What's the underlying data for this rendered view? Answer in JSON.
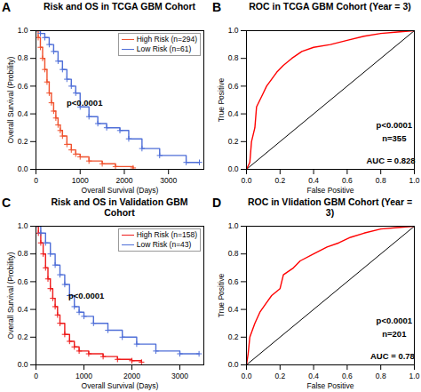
{
  "chart_data": [
    {
      "type": "survival",
      "subtitle": "A",
      "title": "Risk and OS in TCGA GBM Cohort",
      "x_label": "Overall Survival (Days)",
      "y_label": "Overall Survival (Probility)",
      "xlim": [
        0,
        3800
      ],
      "xticks": [
        0,
        1000,
        2000,
        3000
      ],
      "ylim": [
        0,
        1
      ],
      "yticks": [
        {
          "value": 0,
          "label": "0.0"
        },
        {
          "value": 0.2,
          "label": "0.2"
        },
        {
          "value": 0.4,
          "label": "0.4"
        },
        {
          "value": 0.6,
          "label": "0.6"
        },
        {
          "value": 0.8,
          "label": "0.8"
        },
        {
          "value": 1,
          "label": "1.0"
        }
      ],
      "legend": "top-right",
      "marker": "plus",
      "annotations": [
        {
          "text": "p<0.0001",
          "x": 1100,
          "y": 0.48
        }
      ],
      "series": [
        {
          "name": "High Risk (n=294)",
          "color": "#f0522e",
          "x": [
            0,
            50,
            100,
            150,
            200,
            250,
            300,
            350,
            400,
            450,
            500,
            550,
            600,
            700,
            800,
            900,
            1000,
            1200,
            1500,
            1800,
            2200
          ],
          "values": [
            1,
            0.95,
            0.88,
            0.8,
            0.72,
            0.63,
            0.55,
            0.48,
            0.42,
            0.37,
            0.32,
            0.28,
            0.24,
            0.18,
            0.14,
            0.11,
            0.09,
            0.06,
            0.04,
            0.02,
            0.01
          ]
        },
        {
          "name": "Low Risk  (n=61)",
          "color": "#4f6fd8",
          "x": [
            0,
            100,
            200,
            300,
            400,
            500,
            600,
            700,
            800,
            900,
            1000,
            1200,
            1400,
            1600,
            1900,
            2100,
            2400,
            2800,
            3400,
            3700
          ],
          "values": [
            1,
            0.98,
            0.95,
            0.9,
            0.85,
            0.78,
            0.72,
            0.65,
            0.6,
            0.55,
            0.45,
            0.38,
            0.33,
            0.3,
            0.28,
            0.22,
            0.15,
            0.1,
            0.05,
            0.05
          ]
        }
      ]
    },
    {
      "type": "roc",
      "subtitle": "B",
      "title": "ROC in TCGA GBM Cohort (Year = 3)",
      "x_label": "False Positive",
      "y_label": "True Positive",
      "xlim": [
        0,
        1
      ],
      "xticks": [
        {
          "value": 0,
          "label": "0.0"
        },
        {
          "value": 0.2,
          "label": "0.2"
        },
        {
          "value": 0.4,
          "label": "0.4"
        },
        {
          "value": 0.6,
          "label": "0.6"
        },
        {
          "value": 0.8,
          "label": "0.8"
        },
        {
          "value": 1,
          "label": "1.0"
        }
      ],
      "ylim": [
        0,
        1
      ],
      "yticks": [
        {
          "value": 0,
          "label": "0.0"
        },
        {
          "value": 0.2,
          "label": "0.2"
        },
        {
          "value": 0.4,
          "label": "0.4"
        },
        {
          "value": 0.6,
          "label": "0.6"
        },
        {
          "value": 0.8,
          "label": "0.8"
        },
        {
          "value": 1,
          "label": "1.0"
        }
      ],
      "annotations": [
        {
          "text": "p<0.0001",
          "x": 0.88,
          "y": 0.32
        },
        {
          "text": "n=355",
          "x": 0.88,
          "y": 0.22
        },
        {
          "text": "AUC = 0.828",
          "x": 0.86,
          "y": 0.06
        }
      ],
      "series": [
        {
          "color": "red",
          "x": [
            0,
            0.02,
            0.03,
            0.05,
            0.06,
            0.08,
            0.1,
            0.12,
            0.15,
            0.18,
            0.22,
            0.27,
            0.33,
            0.4,
            0.5,
            0.6,
            0.7,
            0.8,
            0.9,
            1
          ],
          "values": [
            0,
            0.05,
            0.2,
            0.3,
            0.45,
            0.5,
            0.55,
            0.6,
            0.65,
            0.7,
            0.75,
            0.8,
            0.85,
            0.88,
            0.9,
            0.93,
            0.96,
            0.98,
            0.99,
            1
          ]
        }
      ]
    },
    {
      "type": "survival",
      "subtitle": "C",
      "title": "Risk and OS in Validation GBM Cohort",
      "x_label": "Overall Survival (Days)",
      "y_label": "Overall Survival (Probility)",
      "xlim": [
        0,
        3500
      ],
      "xticks": [
        0,
        1000,
        2000,
        3000
      ],
      "ylim": [
        0,
        1
      ],
      "yticks": [
        {
          "value": 0,
          "label": "0.0"
        },
        {
          "value": 0.2,
          "label": "0.2"
        },
        {
          "value": 0.4,
          "label": "0.4"
        },
        {
          "value": 0.6,
          "label": "0.6"
        },
        {
          "value": 0.8,
          "label": "0.8"
        },
        {
          "value": 1,
          "label": "1.0"
        }
      ],
      "legend": "top-right",
      "marker": "plus",
      "annotations": [
        {
          "text": "p<0.0001",
          "x": 1050,
          "y": 0.5
        }
      ],
      "series": [
        {
          "name": "High Risk (n=158)",
          "color": "#ee1c1c",
          "x": [
            0,
            50,
            100,
            150,
            200,
            250,
            300,
            350,
            400,
            450,
            500,
            600,
            700,
            800,
            900,
            1100,
            1400,
            1700,
            2000,
            2200
          ],
          "values": [
            1,
            0.95,
            0.88,
            0.8,
            0.7,
            0.62,
            0.55,
            0.48,
            0.42,
            0.36,
            0.3,
            0.22,
            0.17,
            0.13,
            0.1,
            0.08,
            0.06,
            0.04,
            0.03,
            0.02
          ]
        },
        {
          "name": "Low Risk  (n=43)",
          "color": "#4f6fd8",
          "x": [
            0,
            100,
            200,
            300,
            400,
            500,
            600,
            700,
            800,
            900,
            1000,
            1200,
            1500,
            1800,
            2100,
            2500,
            3000,
            3400
          ],
          "values": [
            1,
            0.95,
            0.88,
            0.8,
            0.72,
            0.65,
            0.58,
            0.5,
            0.42,
            0.38,
            0.35,
            0.3,
            0.25,
            0.2,
            0.15,
            0.1,
            0.08,
            0.08
          ]
        }
      ]
    },
    {
      "type": "roc",
      "subtitle": "D",
      "title": "ROC in Vlidation GBM Cohort (Year = 3)",
      "x_label": "False Positive",
      "y_label": "True Positive",
      "xlim": [
        0,
        1
      ],
      "xticks": [
        {
          "value": 0,
          "label": "0.0"
        },
        {
          "value": 0.2,
          "label": "0.2"
        },
        {
          "value": 0.4,
          "label": "0.4"
        },
        {
          "value": 0.6,
          "label": "0.6"
        },
        {
          "value": 0.8,
          "label": "0.8"
        },
        {
          "value": 1,
          "label": "1.0"
        }
      ],
      "ylim": [
        0,
        1
      ],
      "yticks": [
        {
          "value": 0,
          "label": "0.0"
        },
        {
          "value": 0.2,
          "label": "0.2"
        },
        {
          "value": 0.4,
          "label": "0.4"
        },
        {
          "value": 0.6,
          "label": "0.6"
        },
        {
          "value": 0.8,
          "label": "0.8"
        },
        {
          "value": 1,
          "label": "1.0"
        }
      ],
      "annotations": [
        {
          "text": "p<0.0001",
          "x": 0.88,
          "y": 0.32
        },
        {
          "text": "n=201",
          "x": 0.88,
          "y": 0.22
        },
        {
          "text": "AUC = 0.78",
          "x": 0.87,
          "y": 0.06
        }
      ],
      "series": [
        {
          "color": "red",
          "x": [
            0,
            0.01,
            0.02,
            0.05,
            0.08,
            0.12,
            0.15,
            0.2,
            0.22,
            0.28,
            0.32,
            0.4,
            0.48,
            0.55,
            0.62,
            0.7,
            0.8,
            0.9,
            1
          ],
          "values": [
            0,
            0.08,
            0.2,
            0.3,
            0.38,
            0.45,
            0.5,
            0.55,
            0.65,
            0.7,
            0.75,
            0.8,
            0.85,
            0.88,
            0.92,
            0.95,
            0.98,
            0.99,
            1
          ]
        }
      ]
    }
  ]
}
